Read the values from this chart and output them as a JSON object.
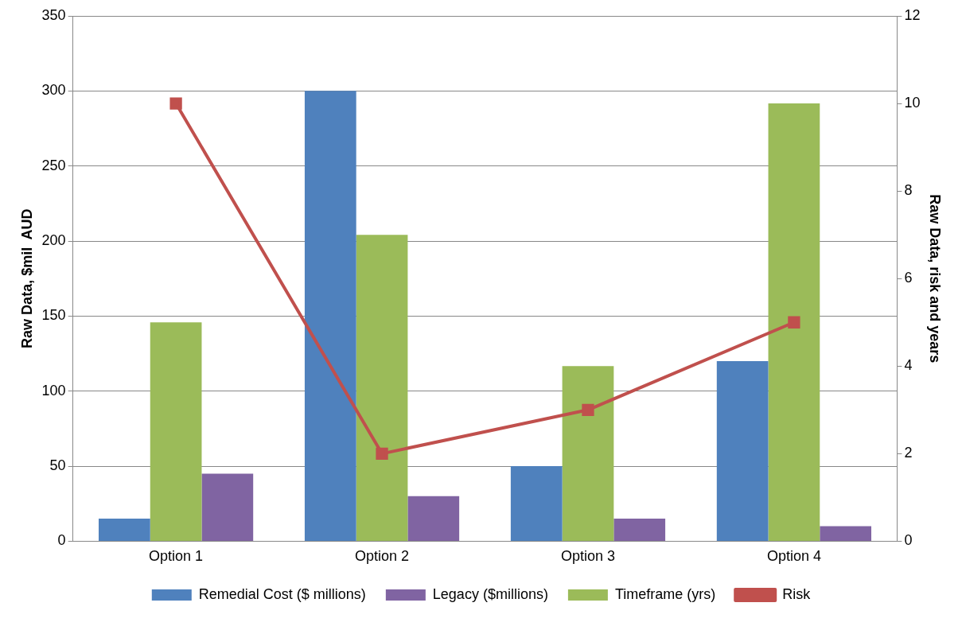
{
  "chart_data": {
    "type": "bar",
    "ylabel": "Raw Data, $mil  AUD",
    "y2label": "Raw Data, risk and years",
    "categories": [
      "Option 1",
      "Option 2",
      "Option 3",
      "Option 4"
    ],
    "series": [
      {
        "name": "Remedial Cost ($ millions)",
        "color": "#4f81bd",
        "values": [
          15,
          300,
          50,
          120
        ]
      },
      {
        "name": "Timeframe (yrs)",
        "color": "#9bbb59",
        "values": [
          5,
          7,
          4,
          10
        ],
        "axis": "y2"
      },
      {
        "name": "Legacy ($millions)",
        "color": "#8064a2",
        "values": [
          45,
          30,
          15,
          10
        ]
      },
      {
        "name": "Risk",
        "type": "line",
        "color": "#c0504d",
        "values": [
          10,
          2,
          3,
          5
        ],
        "axis": "y2",
        "marker": "square",
        "line_style": "solid"
      }
    ],
    "ylim": [
      0,
      350
    ],
    "yticks": [
      0,
      50,
      100,
      150,
      200,
      250,
      300,
      350
    ],
    "y2lim": [
      0,
      12
    ],
    "y2ticks": [
      0,
      2,
      4,
      6,
      8,
      10,
      12
    ],
    "grid": "y",
    "legend": "bottom"
  }
}
